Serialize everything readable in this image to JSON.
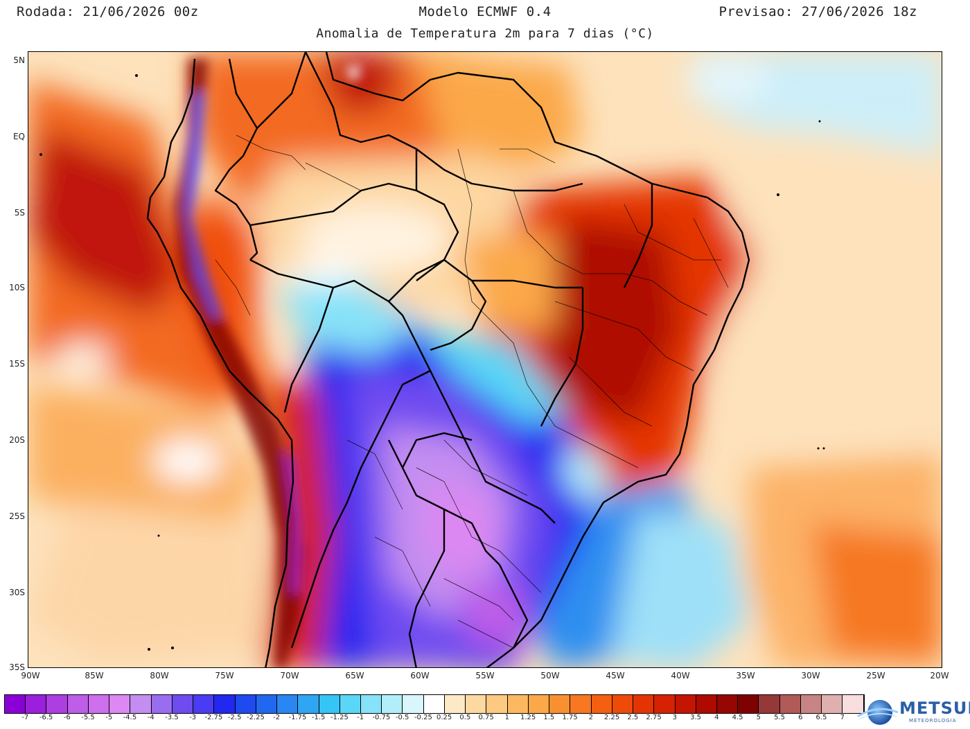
{
  "header": {
    "run": "Rodada: 21/06/2026 00z",
    "model": "Modelo ECMWF 0.4",
    "forecast": "Previsao: 27/06/2026 18z",
    "subtitle": "Anomalia de Temperatura 2m para 7 dias (°C)"
  },
  "axes": {
    "lat_labels": [
      "5N",
      "EQ",
      "5S",
      "10S",
      "15S",
      "20S",
      "25S",
      "30S",
      "35S"
    ],
    "lon_labels": [
      "90W",
      "85W",
      "80W",
      "75W",
      "70W",
      "65W",
      "60W",
      "55W",
      "50W",
      "45W",
      "40W",
      "35W",
      "30W",
      "25W",
      "20W"
    ]
  },
  "colorbar": {
    "labels": [
      "-7",
      "-6.5",
      "-6",
      "-5.5",
      "-5",
      "-4.5",
      "-4",
      "-3.5",
      "-3",
      "-2.75",
      "-2.5",
      "-2.25",
      "-2",
      "-1.75",
      "-1.5",
      "-1.25",
      "-1",
      "-0.75",
      "-0.5",
      "-0.25",
      "0.25",
      "0.5",
      "0.75",
      "1",
      "1.25",
      "1.5",
      "1.75",
      "2",
      "2.25",
      "2.5",
      "2.75",
      "3",
      "3.5",
      "4",
      "4.5",
      "5",
      "5.5",
      "6",
      "6.5",
      "7"
    ],
    "colors": [
      "#8a00d6",
      "#9b1fdc",
      "#ac3ee2",
      "#bd5de8",
      "#ce6fee",
      "#dd88f2",
      "#c48ef0",
      "#9a6df0",
      "#6f4cf0",
      "#4a3cf2",
      "#2228f0",
      "#1f4af0",
      "#2168f0",
      "#2a86f2",
      "#2fa6f4",
      "#35c4f6",
      "#5ad6f6",
      "#86e2f8",
      "#b2eefa",
      "#d8f6fc",
      "#ffffff",
      "#fde8c8",
      "#fdd8a0",
      "#fdc880",
      "#fcb860",
      "#fba848",
      "#f99030",
      "#f77820",
      "#f46010",
      "#ee4a08",
      "#e43404",
      "#d62202",
      "#c41402",
      "#ae0a02",
      "#960602",
      "#7e0202",
      "#943838",
      "#b05a5a",
      "#c88484",
      "#e0b0b0",
      "#f8dede"
    ]
  },
  "logo": {
    "name": "METSUL",
    "tagline": "METEOROLOGIA"
  }
}
